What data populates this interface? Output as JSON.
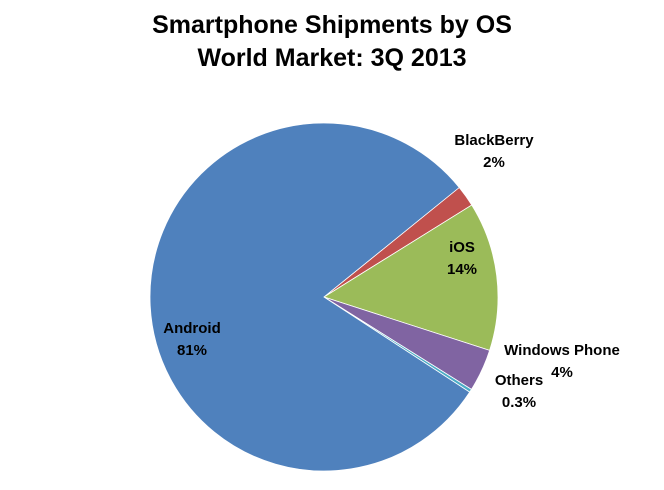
{
  "chart_data": {
    "type": "pie",
    "title": "Smartphone Shipments by OS\nWorld Market: 3Q 2013",
    "title_lines": [
      "Smartphone Shipments by OS",
      "World Market: 3Q 2013"
    ],
    "start_angle_deg": 51,
    "direction": "clockwise",
    "slices": [
      {
        "label": "BlackBerry",
        "value": 2,
        "display": "2%",
        "color": "#C0504D"
      },
      {
        "label": "iOS",
        "value": 14,
        "display": "14%",
        "color": "#9BBB59"
      },
      {
        "label": "Windows Phone",
        "value": 4,
        "display": "4%",
        "color": "#8064A2"
      },
      {
        "label": "Others",
        "value": 0.3,
        "display": "0.3%",
        "color": "#4BACC6"
      },
      {
        "label": "Android",
        "value": 81,
        "display": "81%",
        "color": "#4F81BD"
      }
    ],
    "legend": "none"
  }
}
